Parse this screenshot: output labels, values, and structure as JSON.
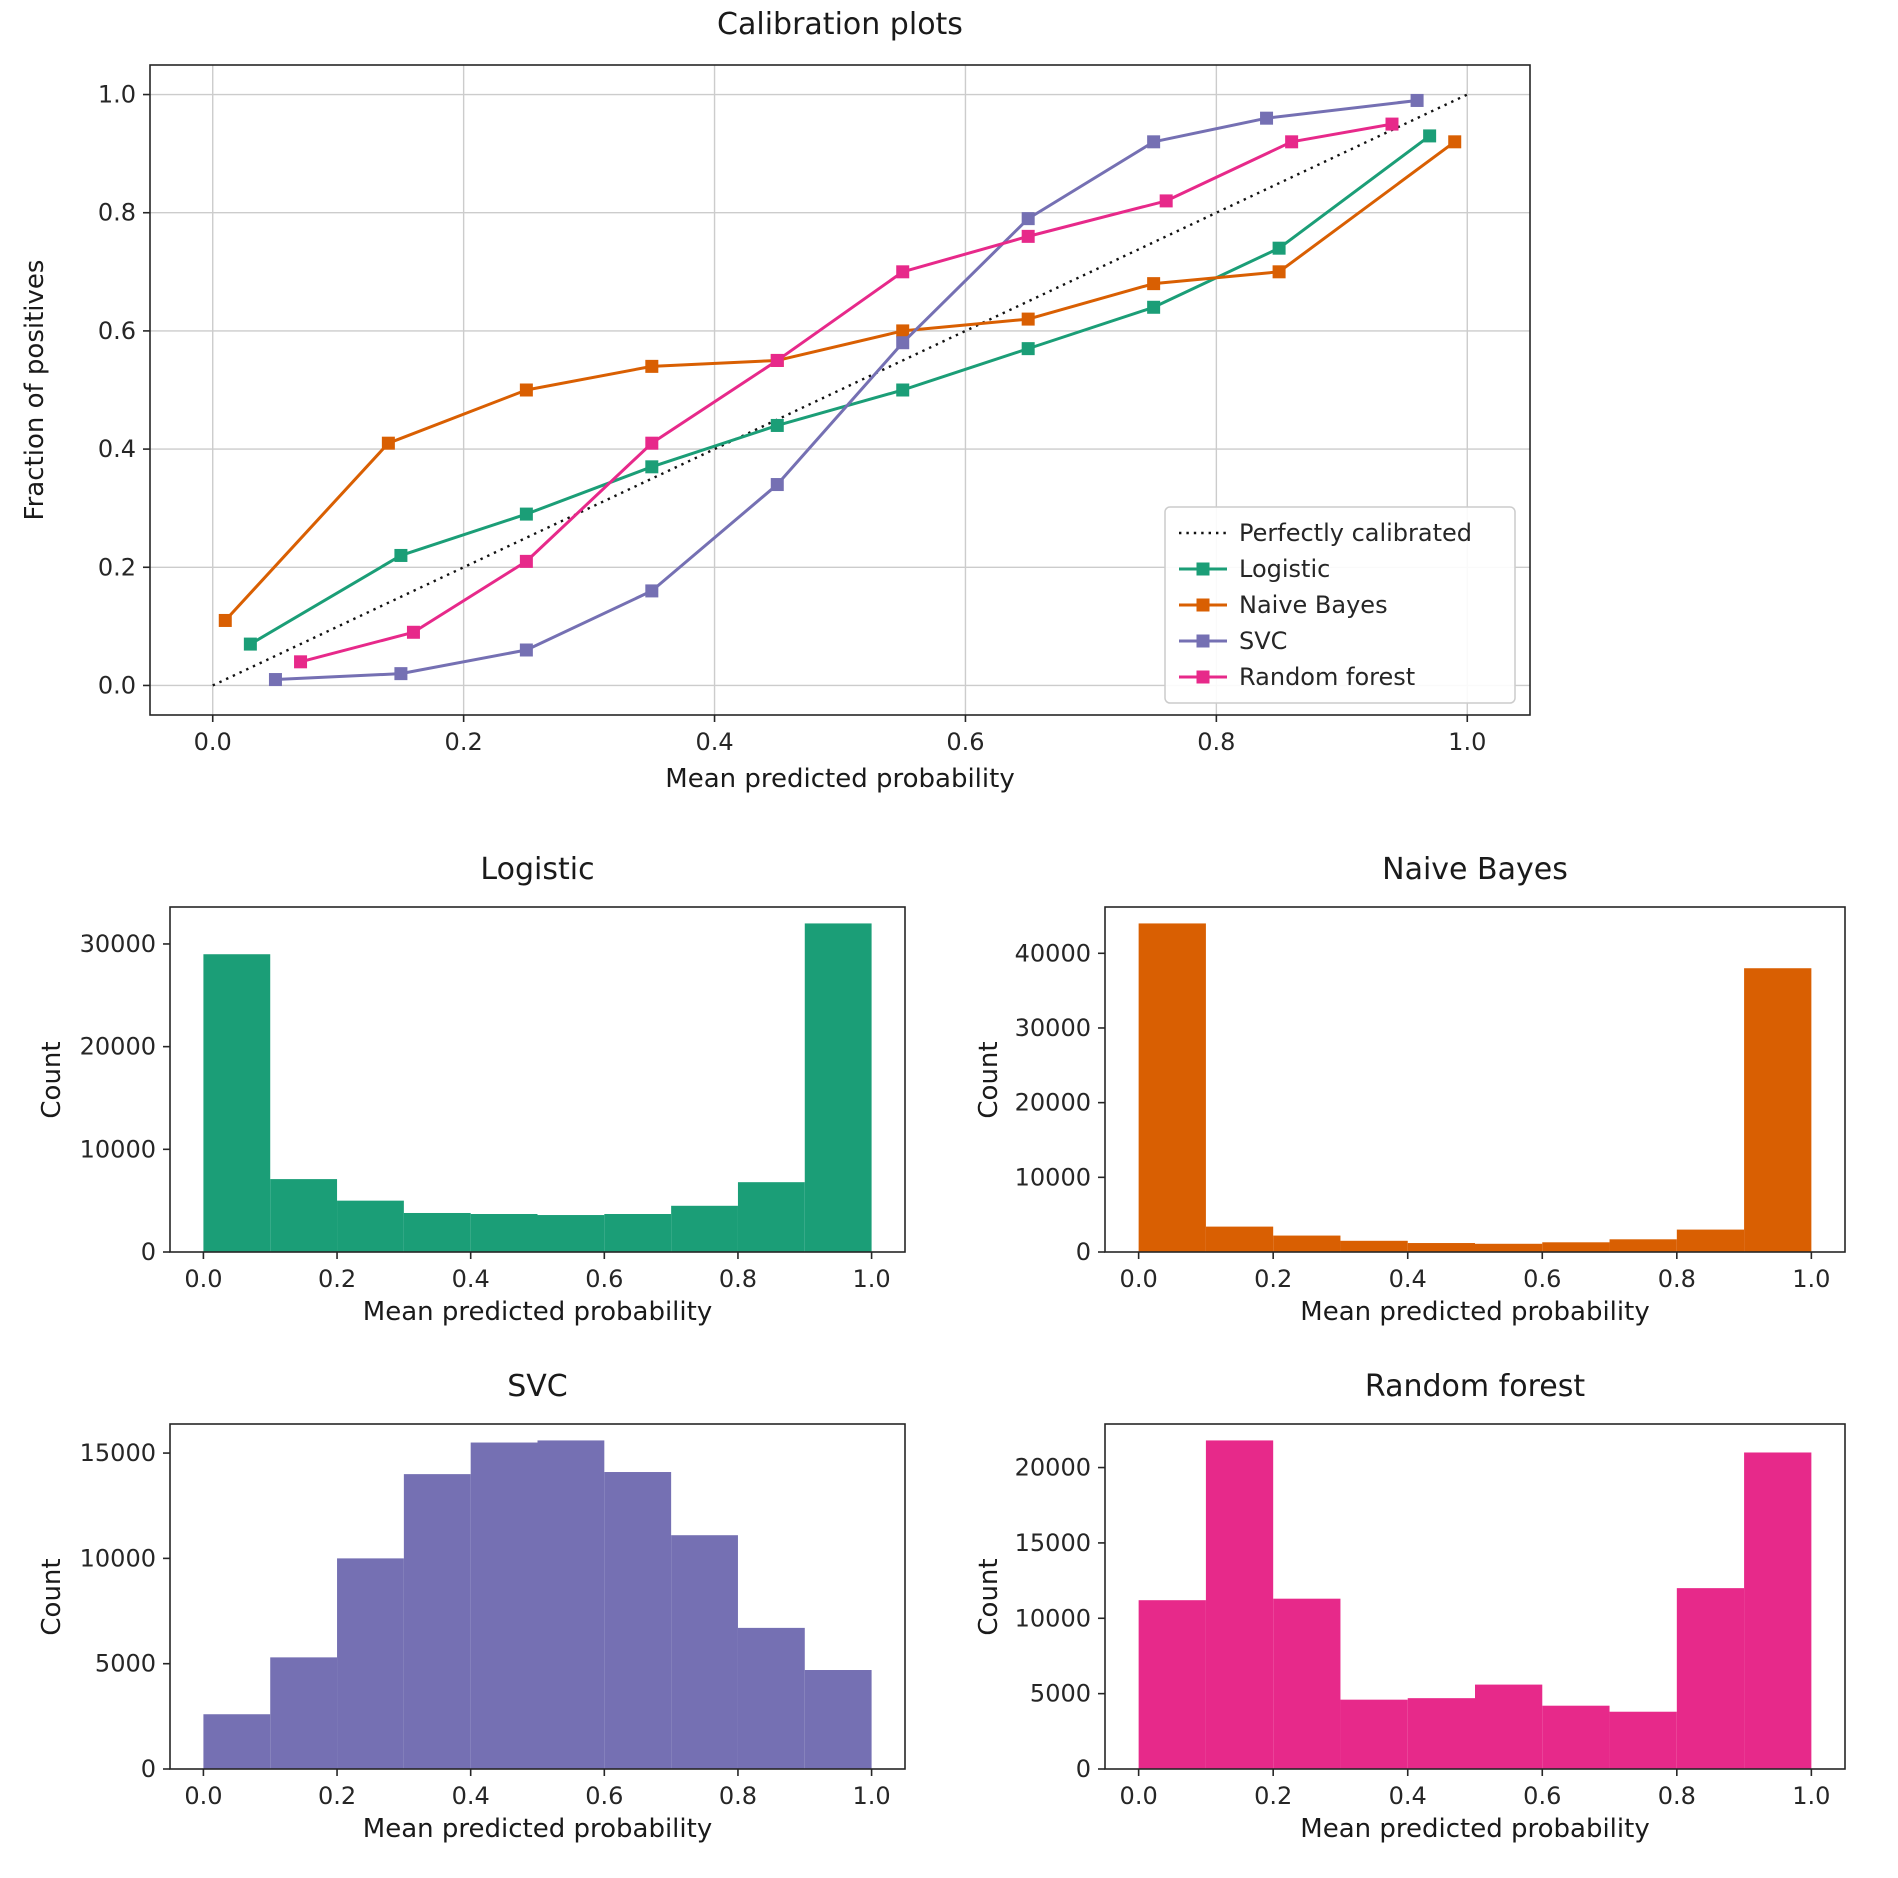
{
  "style": {
    "background": "#ffffff",
    "axis_color": "#262626",
    "text_color": "#1a1a1a",
    "grid_color": "#cccccc",
    "legend_border": "#cccccc"
  },
  "chart_data": [
    {
      "type": "line",
      "title": "Calibration plots",
      "xlabel": "Mean predicted probability",
      "ylabel": "Fraction of positives",
      "xlim": [
        -0.05,
        1.05
      ],
      "ylim": [
        -0.05,
        1.05
      ],
      "xticks": [
        0.0,
        0.2,
        0.4,
        0.6,
        0.8,
        1.0
      ],
      "yticks": [
        0.0,
        0.2,
        0.4,
        0.6,
        0.8,
        1.0
      ],
      "grid": true,
      "legend": {
        "position": "lower right",
        "reference_label": "Perfectly calibrated"
      },
      "reference": {
        "x": [
          0,
          1
        ],
        "y": [
          0,
          1
        ],
        "style": "dotted",
        "color": "#111111"
      },
      "series": [
        {
          "name": "Logistic",
          "color": "#1b9e77",
          "marker": "square",
          "x": [
            0.03,
            0.15,
            0.25,
            0.35,
            0.45,
            0.55,
            0.65,
            0.75,
            0.85,
            0.97
          ],
          "y": [
            0.07,
            0.22,
            0.29,
            0.37,
            0.44,
            0.5,
            0.57,
            0.64,
            0.74,
            0.93
          ]
        },
        {
          "name": "Naive Bayes",
          "color": "#d95f02",
          "marker": "square",
          "x": [
            0.01,
            0.14,
            0.25,
            0.35,
            0.45,
            0.55,
            0.65,
            0.75,
            0.85,
            0.99
          ],
          "y": [
            0.11,
            0.41,
            0.5,
            0.54,
            0.55,
            0.6,
            0.62,
            0.68,
            0.7,
            0.92
          ]
        },
        {
          "name": "SVC",
          "color": "#7570b3",
          "marker": "square",
          "x": [
            0.05,
            0.15,
            0.25,
            0.35,
            0.45,
            0.55,
            0.65,
            0.75,
            0.84,
            0.96
          ],
          "y": [
            0.01,
            0.02,
            0.06,
            0.16,
            0.34,
            0.58,
            0.79,
            0.92,
            0.96,
            0.99
          ]
        },
        {
          "name": "Random forest",
          "color": "#e7298a",
          "marker": "square",
          "x": [
            0.07,
            0.16,
            0.25,
            0.35,
            0.45,
            0.55,
            0.65,
            0.76,
            0.86,
            0.94
          ],
          "y": [
            0.04,
            0.09,
            0.21,
            0.41,
            0.55,
            0.7,
            0.76,
            0.82,
            0.92,
            0.95
          ]
        }
      ]
    },
    {
      "type": "bar",
      "title": "Logistic",
      "xlabel": "Mean predicted probability",
      "ylabel": "Count",
      "color": "#1b9e77",
      "bins": [
        0,
        0.1,
        0.2,
        0.3,
        0.4,
        0.5,
        0.6,
        0.7,
        0.8,
        0.9,
        1.0
      ],
      "counts": [
        29000,
        7100,
        5000,
        3800,
        3700,
        3600,
        3700,
        4500,
        6800,
        32000
      ],
      "xticks": [
        0.0,
        0.2,
        0.4,
        0.6,
        0.8,
        1.0
      ],
      "yticks": [
        0,
        10000,
        20000,
        30000
      ],
      "xlim": [
        -0.05,
        1.05
      ]
    },
    {
      "type": "bar",
      "title": "Naive Bayes",
      "xlabel": "Mean predicted probability",
      "ylabel": "Count",
      "color": "#d95f02",
      "bins": [
        0,
        0.1,
        0.2,
        0.3,
        0.4,
        0.5,
        0.6,
        0.7,
        0.8,
        0.9,
        1.0
      ],
      "counts": [
        44000,
        3400,
        2200,
        1500,
        1200,
        1100,
        1300,
        1700,
        3000,
        38000
      ],
      "xticks": [
        0.0,
        0.2,
        0.4,
        0.6,
        0.8,
        1.0
      ],
      "yticks": [
        0,
        10000,
        20000,
        30000,
        40000
      ],
      "xlim": [
        -0.05,
        1.05
      ]
    },
    {
      "type": "bar",
      "title": "SVC",
      "xlabel": "Mean predicted probability",
      "ylabel": "Count",
      "color": "#7570b3",
      "bins": [
        0,
        0.1,
        0.2,
        0.3,
        0.4,
        0.5,
        0.6,
        0.7,
        0.8,
        0.9,
        1.0
      ],
      "counts": [
        2600,
        5300,
        10000,
        14000,
        15500,
        15600,
        14100,
        11100,
        6700,
        4700
      ],
      "xticks": [
        0.0,
        0.2,
        0.4,
        0.6,
        0.8,
        1.0
      ],
      "yticks": [
        0,
        5000,
        10000,
        15000
      ],
      "xlim": [
        -0.05,
        1.05
      ]
    },
    {
      "type": "bar",
      "title": "Random forest",
      "xlabel": "Mean predicted probability",
      "ylabel": "Count",
      "color": "#e7298a",
      "bins": [
        0,
        0.1,
        0.2,
        0.3,
        0.4,
        0.5,
        0.6,
        0.7,
        0.8,
        0.9,
        1.0
      ],
      "counts": [
        11200,
        21800,
        11300,
        4600,
        4700,
        5600,
        4200,
        3800,
        12000,
        21000
      ],
      "xticks": [
        0.0,
        0.2,
        0.4,
        0.6,
        0.8,
        1.0
      ],
      "yticks": [
        0,
        5000,
        10000,
        15000,
        20000
      ],
      "xlim": [
        -0.05,
        1.05
      ]
    }
  ]
}
